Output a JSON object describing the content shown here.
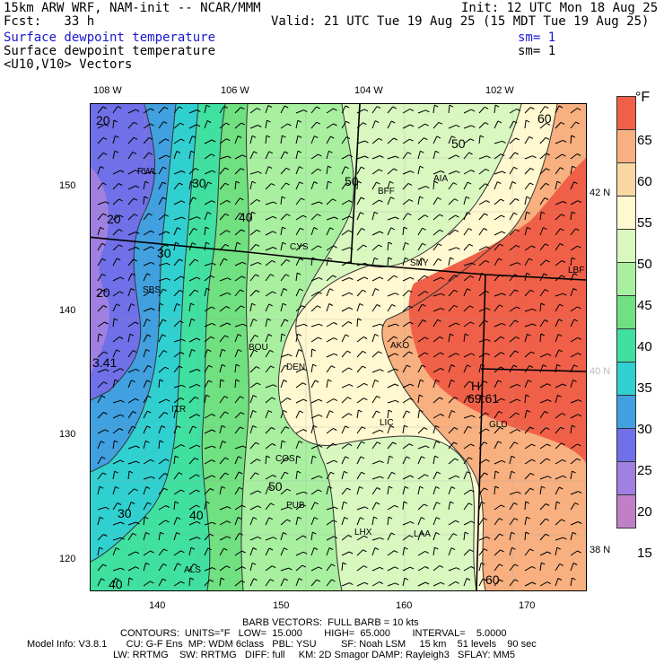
{
  "header": {
    "line1_left": "15km ARW WRF, NAM-init -- NCAR/MMM",
    "line1_right": "Init: 12 UTC Mon 18 Aug 25",
    "line2_left": "Fcst:   33 h",
    "line2_right": "Valid: 21 UTC Tue 19 Aug 25 (15 MDT Tue 19 Aug 25)",
    "line3_left": "Surface dewpoint temperature",
    "line3_right": "sm= 1",
    "line4_left": "Surface dewpoint temperature",
    "line4_right": "sm= 1",
    "line5_left": "<U10,V10> Vectors"
  },
  "colors": {
    "blue_text": "#1818d0",
    "scale": [
      "#c080c8",
      "#a080e0",
      "#7070e8",
      "#40a0e0",
      "#30d0d0",
      "#40e0a0",
      "#70e080",
      "#a8f0a0",
      "#d8f8c0",
      "#fff8d0",
      "#f8d8a0",
      "#f8b080",
      "#f06048"
    ]
  },
  "colorbar": {
    "unit": "°F",
    "labels": [
      "65",
      "60",
      "55",
      "50",
      "45",
      "40",
      "35",
      "30",
      "25",
      "20",
      "15"
    ]
  },
  "axes": {
    "top_lon": [
      "108 W",
      "106 W",
      "104 W",
      "102 W"
    ],
    "right_lat": [
      "42 N",
      "40 N",
      "38 N"
    ],
    "left_grid": [
      "150",
      "140",
      "130",
      "120"
    ],
    "bottom_grid": [
      "140",
      "150",
      "160",
      "170"
    ]
  },
  "map_labels": {
    "contours": [
      "20",
      "30",
      "20",
      "30",
      "20",
      "40",
      "50",
      "50",
      "60",
      "30",
      "40",
      "50",
      "40",
      "30",
      "40",
      "60"
    ],
    "stations": [
      "RWL",
      "BFF",
      "AIA",
      "CYS",
      "SNY",
      "LBF",
      "SBS",
      "BOU",
      "DEN",
      "AKO",
      "LIC",
      "GLD",
      "ITR",
      "COS",
      "PUB",
      "LHX",
      "LAA",
      "ALS"
    ],
    "extrema": [
      "3.41",
      "69.61"
    ],
    "hilo": "H"
  },
  "footer": {
    "barb": "BARB VECTORS:  FULL BARB = 10 kts",
    "contours": "CONTOURS:  UNITS=°F   LOW=  15.000        HIGH=  65.000        INTERVAL=    5.0000",
    "model1": "Model Info: V3.8.1       CU: G-F Ens  MP: WDM 6class   PBL: YSU         SF: Noah LSM     15 km    51 levels    90 sec",
    "model2": "LW: RRTMG    SW: RRTMG   DIFF: full     KM: 2D Smagor DAMP: Rayleigh3   SFLAY: MM5"
  }
}
